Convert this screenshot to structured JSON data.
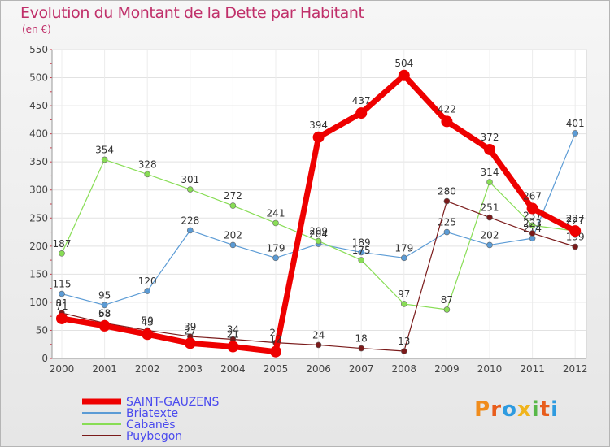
{
  "title": "Evolution du Montant de la Dette par Habitant",
  "subtitle": "(en €)",
  "brand": {
    "text": "Proxiti",
    "letters": [
      "P",
      "r",
      "o",
      "x",
      "i",
      "t",
      "i"
    ],
    "colors": [
      "#f08c1c",
      "#e85d1c",
      "#2e9be0",
      "#f0b41c",
      "#58b848",
      "#e85d1c",
      "#2e9be0"
    ]
  },
  "chart_data": {
    "type": "line",
    "title": "Evolution du Montant de la Dette par Habitant",
    "ylabel": "(en €)",
    "x": [
      "2000",
      "2001",
      "2002",
      "2003",
      "2004",
      "2005",
      "2006",
      "2007",
      "2008",
      "2009",
      "2010",
      "2011",
      "2012"
    ],
    "ylim": [
      0,
      550
    ],
    "yticks": [
      0,
      50,
      100,
      150,
      200,
      250,
      300,
      350,
      400,
      450,
      500,
      550
    ],
    "grid": true,
    "legend_position": "bottom-left",
    "series": [
      {
        "name": "SAINT-GAUZENS",
        "color": "#ee0000",
        "width": 7,
        "values": [
          71,
          58,
          43,
          27,
          21,
          12,
          394,
          437,
          504,
          422,
          372,
          267,
          227
        ]
      },
      {
        "name": "Briatexte",
        "color": "#5b9bd5",
        "width": 1.2,
        "values": [
          115,
          95,
          120,
          228,
          202,
          179,
          204,
          189,
          179,
          225,
          202,
          214,
          401
        ]
      },
      {
        "name": "Cabanès",
        "color": "#88dd55",
        "width": 1.2,
        "values": [
          187,
          354,
          328,
          301,
          272,
          241,
          209,
          175,
          97,
          87,
          314,
          237,
          227
        ]
      },
      {
        "name": "Puybegon",
        "color": "#7a1a1a",
        "width": 1.2,
        "values": [
          81,
          63,
          50,
          39,
          34,
          28,
          24,
          18,
          13,
          280,
          251,
          223,
          199
        ]
      }
    ]
  }
}
